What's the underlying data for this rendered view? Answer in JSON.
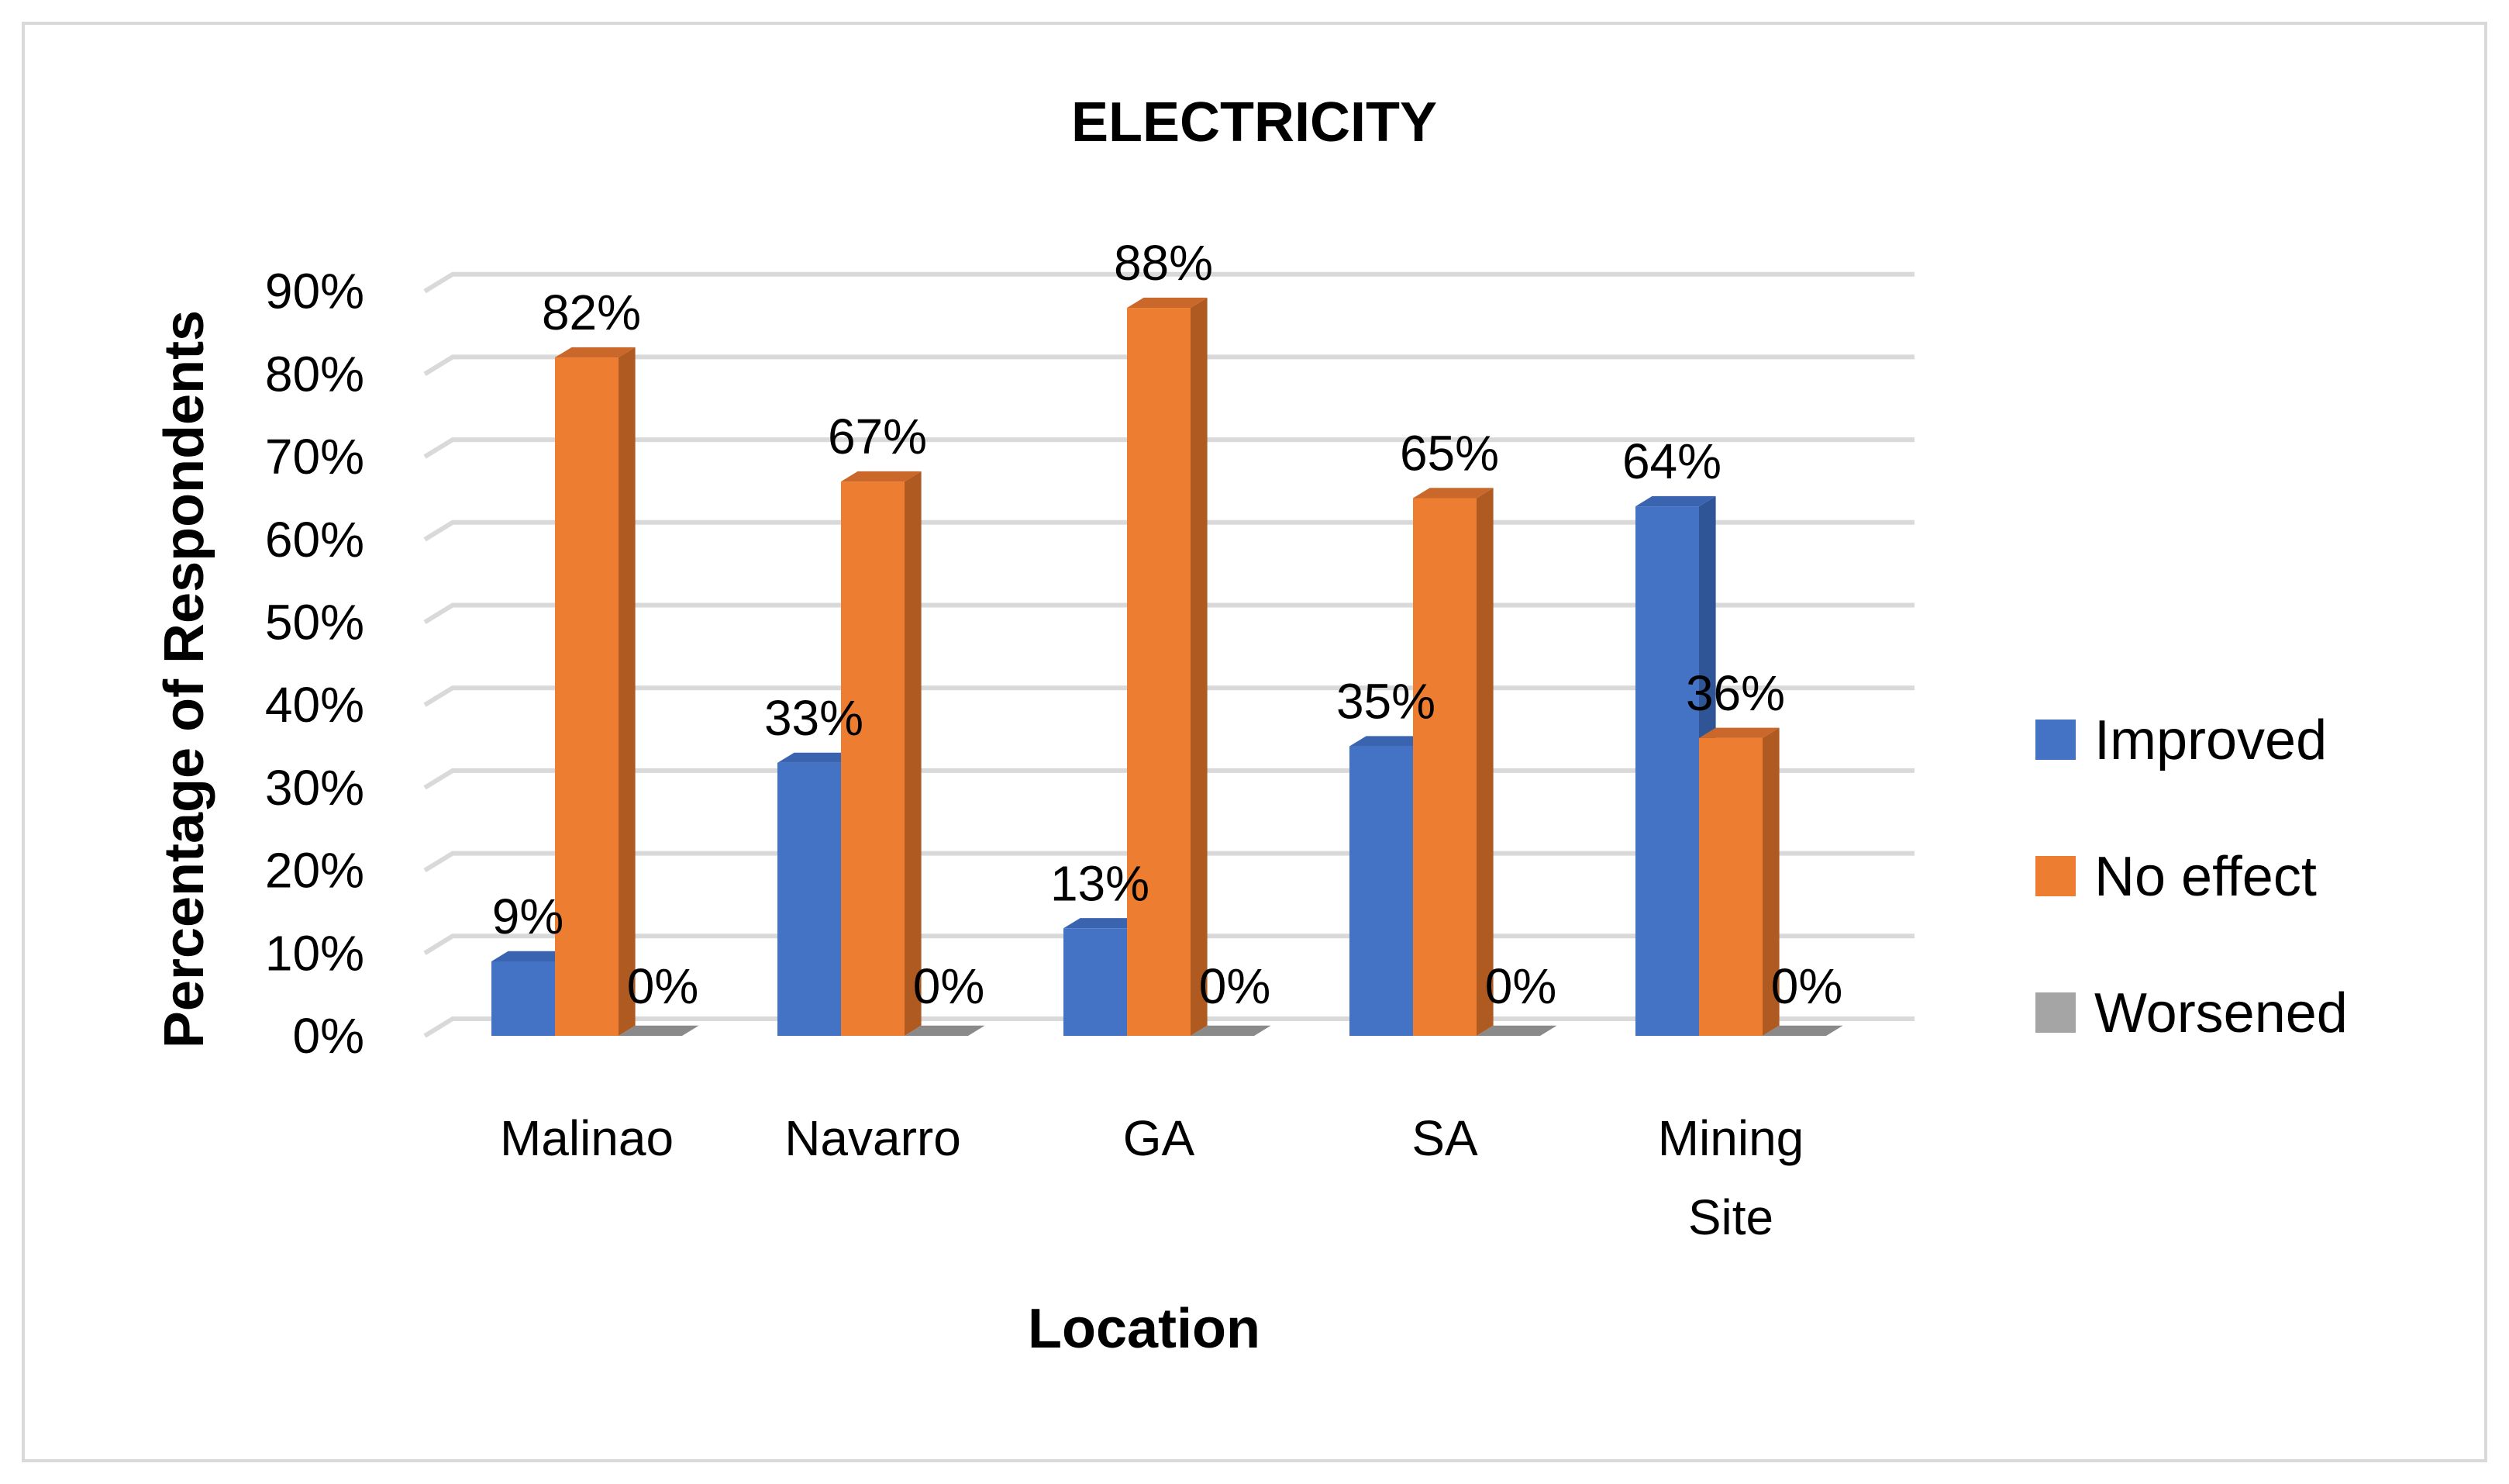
{
  "chart_data": {
    "type": "bar",
    "title": "ELECTRICITY",
    "xlabel": "Location",
    "ylabel": "Percentage of Respondents",
    "ylim": [
      0,
      90
    ],
    "yticks": [
      "0%",
      "10%",
      "20%",
      "30%",
      "40%",
      "50%",
      "60%",
      "70%",
      "80%",
      "90%"
    ],
    "categories": [
      [
        "Malinao"
      ],
      [
        "Navarro"
      ],
      [
        "GA"
      ],
      [
        "SA"
      ],
      [
        "Mining",
        "Site"
      ]
    ],
    "series": [
      {
        "name": "Improved",
        "color": "#4472c4",
        "side": "#2f5597",
        "top": "#3a63b0",
        "values": [
          9,
          33,
          13,
          35,
          64
        ],
        "labels": [
          "9%",
          "33%",
          "13%",
          "35%",
          "64%"
        ]
      },
      {
        "name": "No effect",
        "color": "#ed7d31",
        "side": "#ae5a21",
        "top": "#c9682a",
        "values": [
          82,
          67,
          88,
          65,
          36
        ],
        "labels": [
          "82%",
          "67%",
          "88%",
          "65%",
          "36%"
        ]
      },
      {
        "name": "Worsened",
        "color": "#a5a5a5",
        "side": "#7c7c7c",
        "top": "#8a8a8a",
        "values": [
          0,
          0,
          0,
          0,
          0
        ],
        "labels": [
          "0%",
          "0%",
          "0%",
          "0%",
          "0%"
        ]
      }
    ],
    "grid": true,
    "legend": "right"
  }
}
